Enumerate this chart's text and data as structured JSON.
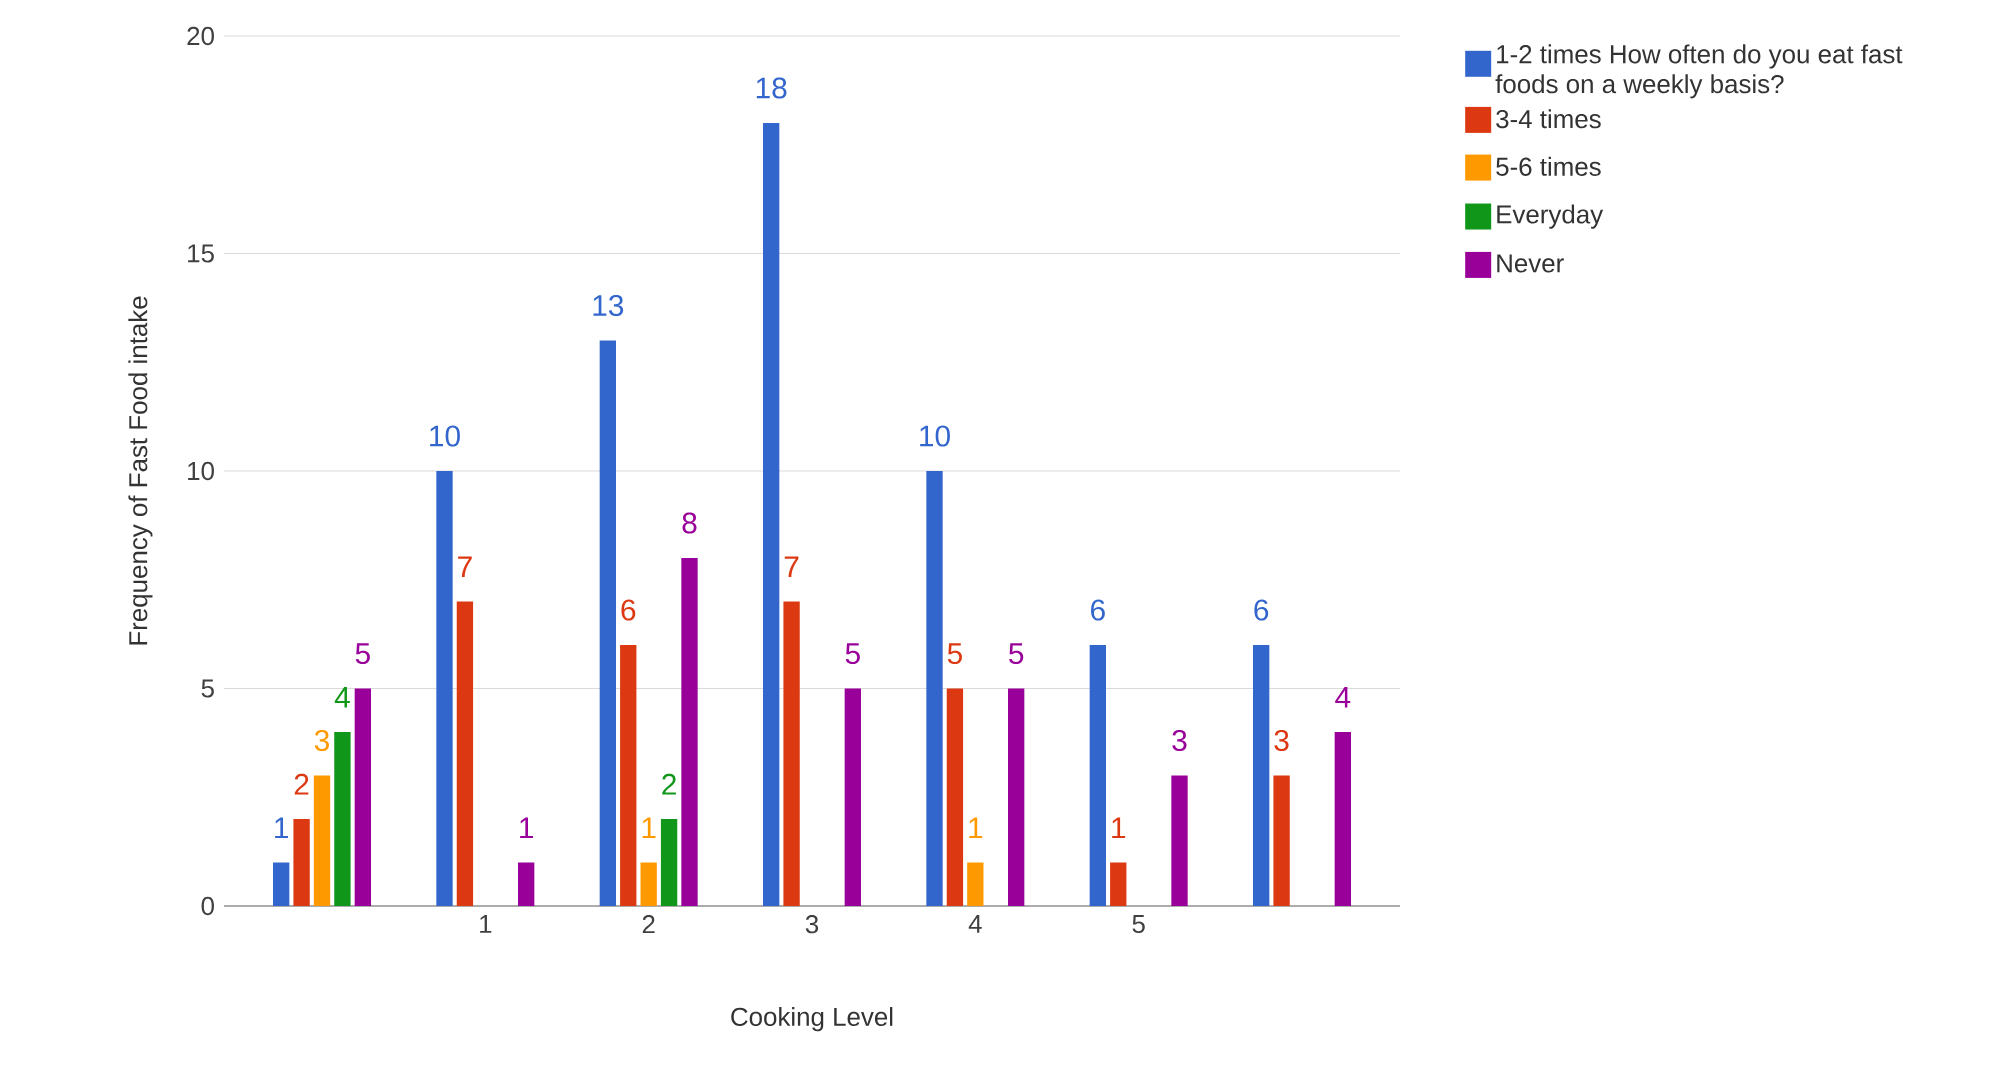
{
  "chart_data": {
    "type": "bar",
    "xlabel": "Cooking Level",
    "ylabel": "Frequency of Fast Food intake",
    "categories": [
      null,
      "1",
      "2",
      "3",
      "4",
      "5",
      null
    ],
    "series": [
      {
        "name": "1-2 times How often do you eat fast foods on a weekly basis?",
        "color": "#3366cc",
        "values": [
          1,
          10,
          13,
          18,
          10,
          6,
          6
        ]
      },
      {
        "name": "3-4 times",
        "color": "#dc3912",
        "values": [
          2,
          7,
          6,
          7,
          5,
          1,
          3
        ]
      },
      {
        "name": "5-6 times",
        "color": "#ff9900",
        "values": [
          3,
          null,
          1,
          null,
          1,
          null,
          null
        ]
      },
      {
        "name": "Everyday",
        "color": "#109618",
        "values": [
          4,
          null,
          2,
          null,
          null,
          null,
          null
        ]
      },
      {
        "name": "Never",
        "color": "#990099",
        "values": [
          5,
          1,
          8,
          5,
          5,
          3,
          4
        ]
      }
    ],
    "ylim": [
      0,
      20
    ],
    "yticks": [
      0,
      5,
      10,
      15,
      20
    ],
    "grid": "y",
    "legend": "top right",
    "data_labels": true
  }
}
